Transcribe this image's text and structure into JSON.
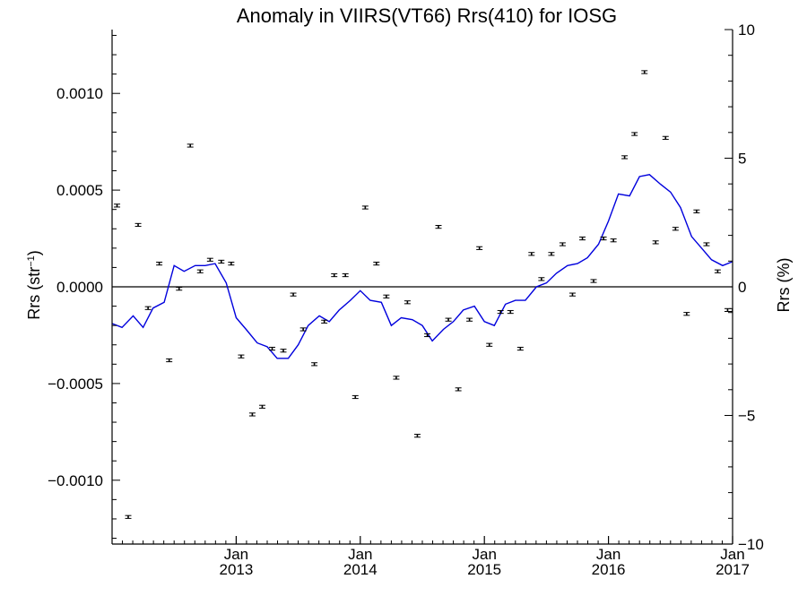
{
  "chart_data": {
    "type": "scatter",
    "title": "Anomaly in VIIRS(VT66) Rrs(410) for IOSG",
    "xlabel": "",
    "ylabel_left_main": "Rrs (str",
    "ylabel_left_sup": "−1",
    "ylabel_left_close": ")",
    "ylabel_right": "Rrs (%)",
    "xlim": [
      2012.0,
      2017.0
    ],
    "ylim_left": [
      -0.00133,
      0.00133
    ],
    "ylim_right": [
      -10.0,
      10.0
    ],
    "x_ticks": [
      {
        "value": 2013,
        "line1": "Jan",
        "line2": "2013"
      },
      {
        "value": 2014,
        "line1": "Jan",
        "line2": "2014"
      },
      {
        "value": 2015,
        "line1": "Jan",
        "line2": "2015"
      },
      {
        "value": 2016,
        "line1": "Jan",
        "line2": "2016"
      },
      {
        "value": 2017,
        "line1": "Jan",
        "line2": "2017"
      }
    ],
    "y_ticks_left": [
      {
        "value": 0.001,
        "label": "0.0010"
      },
      {
        "value": 0.0005,
        "label": "0.0005"
      },
      {
        "value": 0.0,
        "label": "0.0000"
      },
      {
        "value": -0.0005,
        "label": "−0.0005"
      },
      {
        "value": -0.001,
        "label": "−0.0010"
      }
    ],
    "y_ticks_right": [
      {
        "value": 10,
        "label": "10"
      },
      {
        "value": 5,
        "label": "5"
      },
      {
        "value": 0,
        "label": "0"
      },
      {
        "value": -5,
        "label": "−5"
      },
      {
        "value": -10,
        "label": "−10"
      }
    ],
    "zero_line": true,
    "grid": false,
    "colors": {
      "points": "#000000",
      "smooth_line": "#0000dd",
      "axes": "#000000"
    },
    "series": [
      {
        "kind": "points_with_error_bars",
        "x": [
          2012.04,
          2012.13,
          2012.21,
          2012.29,
          2012.38,
          2012.46,
          2012.54,
          2012.63,
          2012.71,
          2012.79,
          2012.88,
          2012.96,
          2013.04,
          2013.13,
          2013.21,
          2013.29,
          2013.38,
          2013.46,
          2013.54,
          2013.63,
          2013.71,
          2013.79,
          2013.88,
          2013.96,
          2014.04,
          2014.13,
          2014.21,
          2014.29,
          2014.38,
          2014.46,
          2014.54,
          2014.63,
          2014.71,
          2014.79,
          2014.88,
          2014.96,
          2015.04,
          2015.13,
          2015.21,
          2015.29,
          2015.38,
          2015.46,
          2015.54,
          2015.63,
          2015.71,
          2015.79,
          2015.88,
          2015.96,
          2016.04,
          2016.13,
          2016.21,
          2016.29,
          2016.38,
          2016.46,
          2016.54,
          2016.63,
          2016.71,
          2016.79,
          2016.88,
          2016.96,
          2017.0
        ],
        "y": [
          0.00042,
          -0.00119,
          0.00032,
          -0.00011,
          0.00012,
          -0.00038,
          -1e-05,
          0.00073,
          8e-05,
          0.00014,
          0.00013,
          0.00012,
          -0.00036,
          -0.00066,
          -0.00062,
          -0.00032,
          -0.00033,
          -4e-05,
          -0.00022,
          -0.0004,
          -0.00018,
          6e-05,
          6e-05,
          -0.00057,
          0.00041,
          0.00012,
          -5e-05,
          -0.00047,
          -8e-05,
          -0.00077,
          -0.00025,
          0.00031,
          -0.00017,
          -0.00053,
          -0.00017,
          0.0002,
          -0.0003,
          -0.00013,
          -0.00013,
          -0.00032,
          0.00017,
          4e-05,
          0.00017,
          0.00022,
          -4e-05,
          0.00025,
          3e-05,
          0.00025,
          0.00024,
          0.00067,
          0.00079,
          0.00111,
          0.00023,
          0.00077,
          0.0003,
          -0.00014,
          0.00039,
          0.00022,
          8e-05,
          -0.00012,
          -0.00012
        ]
      },
      {
        "kind": "line",
        "x": [
          2012.0,
          2012.08,
          2012.17,
          2012.25,
          2012.33,
          2012.42,
          2012.5,
          2012.58,
          2012.67,
          2012.75,
          2012.83,
          2012.92,
          2013.0,
          2013.08,
          2013.17,
          2013.25,
          2013.33,
          2013.42,
          2013.5,
          2013.58,
          2013.67,
          2013.75,
          2013.83,
          2013.92,
          2014.0,
          2014.08,
          2014.17,
          2014.25,
          2014.33,
          2014.42,
          2014.5,
          2014.58,
          2014.67,
          2014.75,
          2014.83,
          2014.92,
          2015.0,
          2015.08,
          2015.17,
          2015.25,
          2015.33,
          2015.42,
          2015.5,
          2015.58,
          2015.67,
          2015.75,
          2015.83,
          2015.92,
          2016.0,
          2016.08,
          2016.17,
          2016.25,
          2016.33,
          2016.42,
          2016.5,
          2016.58,
          2016.67,
          2016.75,
          2016.83,
          2016.92,
          2017.0
        ],
        "y": [
          -0.00019,
          -0.00021,
          -0.00015,
          -0.00021,
          -0.00011,
          -8e-05,
          0.00011,
          8e-05,
          0.00011,
          0.00011,
          0.00012,
          2e-05,
          -0.00016,
          -0.00022,
          -0.00029,
          -0.00031,
          -0.00037,
          -0.00037,
          -0.0003,
          -0.0002,
          -0.00015,
          -0.00018,
          -0.00012,
          -7e-05,
          -2e-05,
          -7e-05,
          -8e-05,
          -0.0002,
          -0.00016,
          -0.00017,
          -0.0002,
          -0.00028,
          -0.00022,
          -0.00018,
          -0.00012,
          -0.0001,
          -0.00018,
          -0.0002,
          -9e-05,
          -7e-05,
          -7e-05,
          0.0,
          2e-05,
          7e-05,
          0.00011,
          0.00012,
          0.00015,
          0.00022,
          0.00034,
          0.00048,
          0.00047,
          0.00057,
          0.00058,
          0.00053,
          0.00049,
          0.00041,
          0.00026,
          0.0002,
          0.00014,
          0.00011,
          0.00013
        ]
      }
    ]
  }
}
